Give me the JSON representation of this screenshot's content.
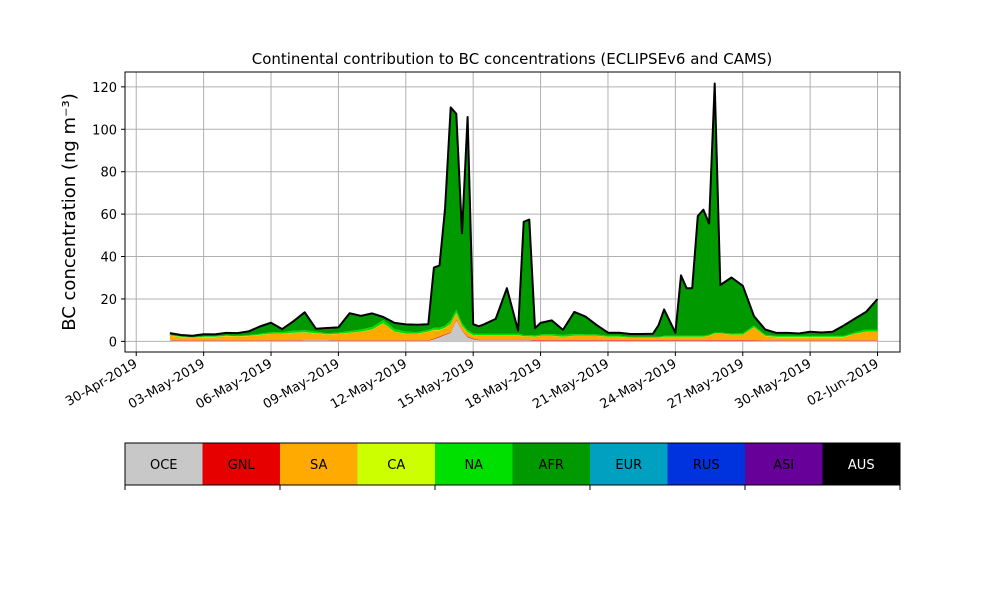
{
  "chart_data": {
    "type": "area",
    "stacked": true,
    "title": "Continental contribution to BC concentrations (ECLIPSEv6 and CAMS)",
    "ylabel": "BC concentration (ng m⁻³)",
    "xlabel": "",
    "ylim": [
      -5,
      127
    ],
    "xlim": [
      "2019-04-29T12:00",
      "2019-06-03T00:00"
    ],
    "yticks": [
      0,
      20,
      40,
      60,
      80,
      100,
      120
    ],
    "xticks": [
      "30-Apr-2019",
      "03-May-2019",
      "06-May-2019",
      "09-May-2019",
      "12-May-2019",
      "15-May-2019",
      "18-May-2019",
      "21-May-2019",
      "24-May-2019",
      "27-May-2019",
      "30-May-2019",
      "02-Jun-2019"
    ],
    "xtick_dates": [
      "2019-04-30",
      "2019-05-03",
      "2019-05-06",
      "2019-05-09",
      "2019-05-12",
      "2019-05-15",
      "2019-05-18",
      "2019-05-21",
      "2019-05-24",
      "2019-05-27",
      "2019-05-30",
      "2019-06-02"
    ],
    "grid": true,
    "x": [
      "2019-05-01T12:00",
      "2019-05-02T00:00",
      "2019-05-02T12:00",
      "2019-05-03T00:00",
      "2019-05-03T12:00",
      "2019-05-04T00:00",
      "2019-05-04T12:00",
      "2019-05-05T00:00",
      "2019-05-05T12:00",
      "2019-05-06T00:00",
      "2019-05-06T12:00",
      "2019-05-07T00:00",
      "2019-05-07T12:00",
      "2019-05-08T00:00",
      "2019-05-08T12:00",
      "2019-05-09T00:00",
      "2019-05-09T12:00",
      "2019-05-10T00:00",
      "2019-05-10T12:00",
      "2019-05-11T00:00",
      "2019-05-11T12:00",
      "2019-05-12T00:00",
      "2019-05-12T12:00",
      "2019-05-13T00:00",
      "2019-05-13T06:00",
      "2019-05-13T12:00",
      "2019-05-13T18:00",
      "2019-05-14T00:00",
      "2019-05-14T06:00",
      "2019-05-14T12:00",
      "2019-05-14T18:00",
      "2019-05-15T00:00",
      "2019-05-15T06:00",
      "2019-05-15T12:00",
      "2019-05-16T00:00",
      "2019-05-16T12:00",
      "2019-05-17T00:00",
      "2019-05-17T06:00",
      "2019-05-17T12:00",
      "2019-05-17T18:00",
      "2019-05-18T00:00",
      "2019-05-18T12:00",
      "2019-05-19T00:00",
      "2019-05-19T12:00",
      "2019-05-20T00:00",
      "2019-05-20T12:00",
      "2019-05-21T00:00",
      "2019-05-21T12:00",
      "2019-05-22T00:00",
      "2019-05-22T12:00",
      "2019-05-23T00:00",
      "2019-05-23T06:00",
      "2019-05-23T12:00",
      "2019-05-24T00:00",
      "2019-05-24T06:00",
      "2019-05-24T12:00",
      "2019-05-24T18:00",
      "2019-05-25T00:00",
      "2019-05-25T06:00",
      "2019-05-25T12:00",
      "2019-05-25T18:00",
      "2019-05-26T00:00",
      "2019-05-26T12:00",
      "2019-05-27T00:00",
      "2019-05-27T12:00",
      "2019-05-28T00:00",
      "2019-05-28T12:00",
      "2019-05-29T00:00",
      "2019-05-29T12:00",
      "2019-05-30T00:00",
      "2019-05-30T12:00",
      "2019-05-31T00:00",
      "2019-05-31T12:00",
      "2019-06-01T00:00",
      "2019-06-01T12:00",
      "2019-06-02T00:00"
    ],
    "series": [
      {
        "name": "OCE",
        "color": "#c8c8c8",
        "values": [
          0.5,
          0.3,
          0.3,
          0.3,
          0.3,
          0.3,
          0.3,
          0.3,
          0.3,
          0.3,
          0.3,
          0.3,
          0.5,
          0.5,
          0.5,
          0.3,
          0.3,
          0.3,
          0.3,
          0.3,
          0.3,
          0.3,
          0.3,
          0.3,
          1,
          2,
          3,
          4,
          10,
          5,
          2,
          1,
          0.5,
          0.5,
          0.5,
          0.5,
          0.5,
          0.5,
          0.5,
          0.3,
          0.3,
          0.3,
          0.3,
          0.3,
          0.3,
          0.3,
          0.3,
          0.3,
          0.3,
          0.3,
          0.3,
          0.3,
          0.3,
          0.3,
          0.3,
          0.3,
          0.3,
          0.3,
          0.3,
          0.3,
          0.3,
          0.3,
          0.3,
          0.3,
          0.3,
          0.3,
          0.3,
          0.3,
          0.3,
          0.3,
          0.3,
          0.3,
          0.3,
          0.3,
          0.3,
          0.3
        ]
      },
      {
        "name": "GNL",
        "color": "#e60000",
        "values": [
          0.2,
          0.2,
          0.2,
          0.2,
          0.2,
          0.2,
          0.2,
          0.2,
          0.2,
          0.2,
          0.2,
          0.2,
          0.2,
          0.2,
          0.2,
          0.2,
          0.2,
          0.2,
          0.2,
          0.2,
          0.2,
          0.2,
          0.2,
          0.2,
          0.3,
          0.3,
          0.3,
          0.3,
          0.3,
          0.3,
          0.3,
          0.3,
          0.3,
          0.3,
          0.3,
          0.3,
          0.3,
          0.3,
          0.3,
          0.3,
          0.3,
          0.3,
          0.3,
          0.3,
          0.3,
          0.3,
          0.3,
          0.3,
          0.3,
          0.3,
          0.3,
          0.3,
          0.3,
          0.3,
          0.3,
          0.3,
          0.3,
          0.3,
          0.3,
          0.3,
          0.3,
          0.3,
          0.3,
          0.3,
          0.3,
          0.2,
          0.2,
          0.2,
          0.2,
          0.2,
          0.2,
          0.2,
          0.2,
          0.2,
          0.2,
          0.2
        ]
      },
      {
        "name": "SA",
        "color": "#ffaa00",
        "values": [
          2,
          1.5,
          1.2,
          1.5,
          1.5,
          2,
          1.8,
          2,
          2.5,
          3,
          3,
          3.5,
          3.5,
          3,
          2.5,
          3,
          3.5,
          4,
          5,
          8,
          4,
          3,
          3,
          4,
          4,
          3,
          3,
          4,
          3,
          2,
          2,
          1.5,
          2,
          2,
          2,
          2,
          2,
          1.5,
          1.5,
          1.5,
          2,
          2,
          1.5,
          2,
          2,
          2,
          1.5,
          1.5,
          1,
          1,
          1,
          1,
          1.5,
          1.5,
          1.5,
          1.5,
          1.5,
          1.5,
          1.5,
          2,
          3,
          3,
          2.5,
          2.5,
          6,
          2,
          1.5,
          1.5,
          1.5,
          1.5,
          1.5,
          1.5,
          1.5,
          3,
          4,
          4
        ]
      },
      {
        "name": "CA",
        "color": "#ccff00",
        "values": [
          0.1,
          0.1,
          0.1,
          0.1,
          0.1,
          0.1,
          0.1,
          0.1,
          0.1,
          0.1,
          0.1,
          0.1,
          0.1,
          0.1,
          0.1,
          0.1,
          0.1,
          0.1,
          0.1,
          0.1,
          0.1,
          0.1,
          0.1,
          0.1,
          0.1,
          0.1,
          0.1,
          0.1,
          0.1,
          0.1,
          0.1,
          0.1,
          0.1,
          0.1,
          0.1,
          0.1,
          0.1,
          0.1,
          0.1,
          0.1,
          0.1,
          0.1,
          0.1,
          0.1,
          0.1,
          0.1,
          0.1,
          0.1,
          0.1,
          0.1,
          0.1,
          0.1,
          0.1,
          0.1,
          0.1,
          0.1,
          0.1,
          0.1,
          0.1,
          0.1,
          0.1,
          0.1,
          0.1,
          0.1,
          0.1,
          0.1,
          0.1,
          0.1,
          0.1,
          0.1,
          0.1,
          0.1,
          0.1,
          0.1,
          0.1,
          0.1
        ]
      },
      {
        "name": "NA",
        "color": "#00e000",
        "values": [
          0.3,
          0.2,
          0.2,
          0.3,
          0.3,
          0.3,
          0.3,
          0.4,
          0.5,
          0.8,
          0.8,
          1,
          1,
          0.8,
          0.6,
          0.6,
          0.8,
          1,
          1.2,
          1.5,
          1.2,
          1,
          0.8,
          0.8,
          1,
          1,
          1,
          1.5,
          1.5,
          1.2,
          1,
          0.8,
          0.8,
          0.8,
          0.8,
          0.8,
          0.8,
          0.6,
          0.6,
          0.6,
          0.6,
          0.8,
          0.8,
          0.8,
          0.6,
          0.6,
          0.5,
          0.5,
          0.5,
          0.5,
          0.5,
          0.5,
          0.5,
          0.5,
          0.5,
          0.5,
          0.5,
          0.5,
          0.5,
          0.5,
          0.5,
          0.5,
          0.5,
          0.6,
          0.8,
          0.6,
          0.5,
          0.5,
          0.5,
          0.5,
          0.5,
          0.5,
          0.5,
          0.8,
          1,
          1
        ]
      },
      {
        "name": "AFR",
        "color": "#009900",
        "values": [
          0.4,
          0.3,
          0.3,
          0.6,
          0.5,
          0.7,
          0.8,
          1.3,
          3,
          4,
          1,
          4,
          8,
          1,
          2,
          2,
          8,
          6,
          6,
          1,
          2.5,
          3,
          3,
          2.3,
          28,
          29,
          55,
          100,
          92,
          42,
          100,
          4,
          3,
          4,
          6.5,
          21,
          1,
          53,
          54,
          3,
          5,
          6,
          2,
          10,
          8,
          4,
          1,
          1,
          0.9,
          0.9,
          1,
          5,
          12,
          1,
          28,
          22,
          22,
          56,
          59,
          52,
          117,
          22,
          26,
          22,
          4,
          2,
          1,
          1,
          0.7,
          1.5,
          1.2,
          1.5,
          4.5,
          6,
          8,
          14
        ]
      },
      {
        "name": "EUR",
        "color": "#00a0c0",
        "values": [
          0.1,
          0.1,
          0.1,
          0.1,
          0.1,
          0.1,
          0.1,
          0.1,
          0.1,
          0.1,
          0.1,
          0.1,
          0.1,
          0.1,
          0.1,
          0.1,
          0.1,
          0.1,
          0.1,
          0.1,
          0.1,
          0.1,
          0.1,
          0.1,
          0.1,
          0.1,
          0.1,
          0.1,
          0.1,
          0.1,
          0.1,
          0.1,
          0.1,
          0.1,
          0.1,
          0.1,
          0.1,
          0.1,
          0.1,
          0.1,
          0.1,
          0.1,
          0.1,
          0.1,
          0.1,
          0.1,
          0.1,
          0.1,
          0.1,
          0.1,
          0.1,
          0.1,
          0.1,
          0.1,
          0.1,
          0.1,
          0.1,
          0.1,
          0.1,
          0.1,
          0.1,
          0.1,
          0.1,
          0.1,
          0.1,
          0.1,
          0.1,
          0.1,
          0.1,
          0.1,
          0.1,
          0.1,
          0.1,
          0.1,
          0.1,
          0.1
        ]
      },
      {
        "name": "RUS",
        "color": "#0033dd",
        "values": [
          0.1,
          0.1,
          0.1,
          0.1,
          0.1,
          0.1,
          0.1,
          0.1,
          0.1,
          0.1,
          0.1,
          0.1,
          0.1,
          0.1,
          0.1,
          0.1,
          0.1,
          0.1,
          0.1,
          0.1,
          0.1,
          0.1,
          0.1,
          0.1,
          0.1,
          0.1,
          0.1,
          0.1,
          0.1,
          0.1,
          0.1,
          0.1,
          0.1,
          0.1,
          0.1,
          0.1,
          0.1,
          0.1,
          0.1,
          0.1,
          0.1,
          0.1,
          0.1,
          0.1,
          0.1,
          0.1,
          0.1,
          0.1,
          0.1,
          0.1,
          0.1,
          0.1,
          0.1,
          0.1,
          0.1,
          0.1,
          0.1,
          0.1,
          0.1,
          0.1,
          0.1,
          0.1,
          0.1,
          0.1,
          0.1,
          0.1,
          0.1,
          0.1,
          0.1,
          0.1,
          0.1,
          0.1,
          0.1,
          0.1,
          0.1,
          0.1
        ]
      },
      {
        "name": "ASI",
        "color": "#660099",
        "values": [
          0.2,
          0.2,
          0.2,
          0.2,
          0.2,
          0.2,
          0.2,
          0.2,
          0.2,
          0.2,
          0.2,
          0.2,
          0.2,
          0.2,
          0.2,
          0.2,
          0.2,
          0.2,
          0.2,
          0.2,
          0.2,
          0.2,
          0.2,
          0.2,
          0.2,
          0.2,
          0.2,
          0.2,
          0.2,
          0.2,
          0.2,
          0.2,
          0.2,
          0.2,
          0.2,
          0.2,
          0.2,
          0.2,
          0.2,
          0.2,
          0.2,
          0.2,
          0.2,
          0.2,
          0.2,
          0.2,
          0.2,
          0.2,
          0.2,
          0.2,
          0.2,
          0.2,
          0.2,
          0.2,
          0.2,
          0.2,
          0.2,
          0.2,
          0.2,
          0.2,
          0.2,
          0.2,
          0.2,
          0.2,
          0.2,
          0.2,
          0.2,
          0.2,
          0.2,
          0.2,
          0.2,
          0.2,
          0.2,
          0.2,
          0.2,
          0.2
        ]
      },
      {
        "name": "AUS",
        "color": "#000000",
        "values": [
          0,
          0,
          0,
          0,
          0,
          0,
          0,
          0,
          0,
          0,
          0,
          0,
          0,
          0,
          0,
          0,
          0,
          0,
          0,
          0,
          0,
          0,
          0,
          0,
          0,
          0,
          0,
          0,
          0,
          0,
          0,
          0,
          0,
          0,
          0,
          0,
          0,
          0,
          0,
          0,
          0,
          0,
          0,
          0,
          0,
          0,
          0,
          0,
          0,
          0,
          0,
          0,
          0,
          0,
          0,
          0,
          0,
          0,
          0,
          0,
          0,
          0,
          0,
          0,
          0,
          0,
          0,
          0,
          0,
          0,
          0,
          0,
          0,
          0,
          0,
          0
        ]
      }
    ],
    "legend": {
      "position": "bottom",
      "labels": [
        "OCE",
        "GNL",
        "SA",
        "CA",
        "NA",
        "AFR",
        "EUR",
        "RUS",
        "ASI",
        "AUS"
      ],
      "colors": [
        "#c8c8c8",
        "#e60000",
        "#ffaa00",
        "#ccff00",
        "#00e000",
        "#009900",
        "#00a0c0",
        "#0033dd",
        "#660099",
        "#000000"
      ],
      "text_colors": [
        "#000000",
        "#000000",
        "#000000",
        "#000000",
        "#000000",
        "#000000",
        "#000000",
        "#000000",
        "#000000",
        "#ffffff"
      ]
    }
  }
}
